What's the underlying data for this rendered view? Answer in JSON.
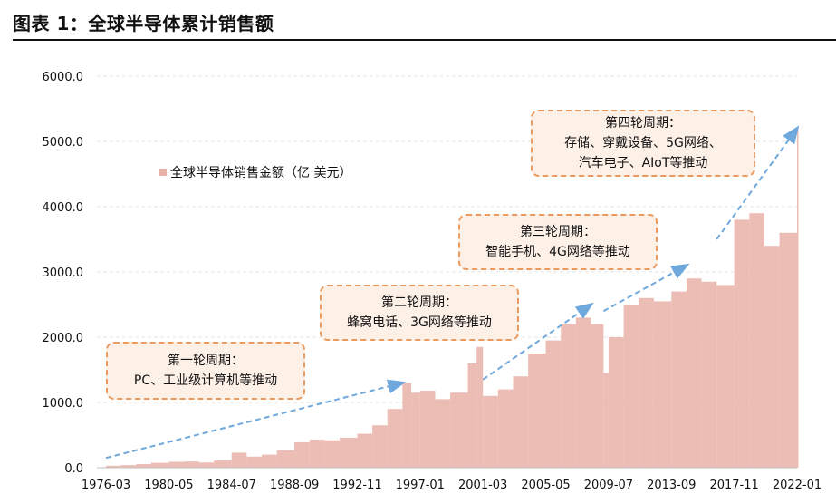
{
  "title": "图表 1：全球半导体累计销售额",
  "colors": {
    "bar": "#e9b1a8",
    "arrow": "#6fa8dc",
    "ann_border": "#ea9a5f",
    "ann_fill": "#fdf0e7",
    "grid": "#e3e3e3"
  },
  "legend": {
    "label": "全球半导体销售金额（亿 美元）"
  },
  "annotations": [
    {
      "lines": [
        "第一轮周期：",
        "PC、工业级计算机等推动"
      ]
    },
    {
      "lines": [
        "第二轮周期：",
        "蜂窝电话、3G网络等推动"
      ]
    },
    {
      "lines": [
        "第三轮周期：",
        "智能手机、4G网络等推动"
      ]
    },
    {
      "lines": [
        "第四轮周期：",
        "存储、穿戴设备、5G网络、",
        "汽车电子、AIoT等推动"
      ]
    }
  ],
  "chart_data": {
    "type": "area",
    "title": "图表 1：全球半导体累计销售额",
    "xlabel": "",
    "ylabel": "",
    "ylim": [
      0,
      6000
    ],
    "y_ticks": [
      "0.0",
      "1000.0",
      "2000.0",
      "3000.0",
      "4000.0",
      "5000.0",
      "6000.0"
    ],
    "x_ticks": [
      "1976-03",
      "1980-05",
      "1984-07",
      "1988-09",
      "1992-11",
      "1997-01",
      "2001-03",
      "2005-05",
      "2009-07",
      "2013-09",
      "2017-11",
      "2022-01"
    ],
    "grid": "horizontal dashed",
    "legend_position": "upper-left",
    "series": [
      {
        "name": "全球半导体销售金额（亿 美元）",
        "x": [
          "1976-03",
          "1977-03",
          "1978-03",
          "1979-03",
          "1980-05",
          "1981-05",
          "1982-05",
          "1983-05",
          "1984-07",
          "1985-07",
          "1986-07",
          "1987-07",
          "1988-09",
          "1989-09",
          "1990-09",
          "1991-09",
          "1992-11",
          "1993-11",
          "1994-11",
          "1995-11",
          "1996-06",
          "1997-01",
          "1998-01",
          "1999-01",
          "2000-03",
          "2000-10",
          "2001-03",
          "2002-03",
          "2003-03",
          "2004-03",
          "2005-05",
          "2006-05",
          "2007-05",
          "2008-05",
          "2009-03",
          "2009-07",
          "2010-07",
          "2011-07",
          "2012-07",
          "2013-09",
          "2014-09",
          "2015-09",
          "2016-09",
          "2017-11",
          "2018-11",
          "2019-11",
          "2020-11",
          "2022-01"
        ],
        "values": [
          30,
          40,
          55,
          75,
          90,
          95,
          80,
          110,
          230,
          170,
          200,
          270,
          390,
          430,
          420,
          460,
          520,
          650,
          900,
          1300,
          1150,
          1180,
          1050,
          1150,
          1600,
          1850,
          1100,
          1200,
          1400,
          1750,
          1950,
          2200,
          2300,
          2200,
          1450,
          2000,
          2500,
          2600,
          2550,
          2700,
          2900,
          2850,
          2800,
          3800,
          3900,
          3400,
          3600,
          5200
        ]
      }
    ],
    "trend_arrows": [
      {
        "from": [
          "1976-03",
          150
        ],
        "to": [
          "1995-11",
          1300
        ]
      },
      {
        "from": [
          "2001-03",
          1350
        ],
        "to": [
          "2008-05",
          2500
        ]
      },
      {
        "from": [
          "2009-03",
          2400
        ],
        "to": [
          "2014-09",
          3100
        ]
      },
      {
        "from": [
          "2016-09",
          3500
        ],
        "to": [
          "2022-01",
          5200
        ]
      }
    ]
  }
}
